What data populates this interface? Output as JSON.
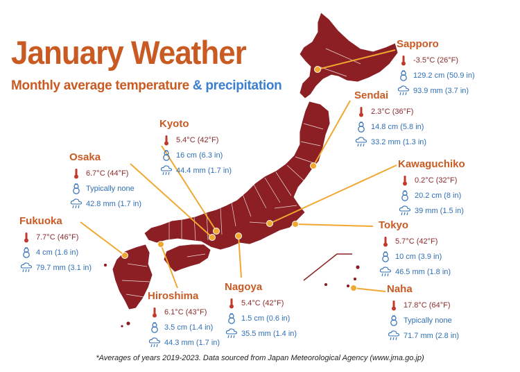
{
  "title": "January Weather",
  "subtitle": {
    "part1": "Monthly average temperature",
    "part2": "& precipitation"
  },
  "footnote": "*Averages of years 2019-2023. Data sourced from Japan Meteorological Agency (www.jma.go.jp)",
  "colors": {
    "land": "#8b1f24",
    "accent": "#c95a22",
    "blue": "#3a7fd1",
    "leader": "#f0a830"
  },
  "icons": {
    "temperature": "thermometer-icon",
    "snow": "snowman-icon",
    "precipitation": "rain-cloud-icon"
  },
  "cities": {
    "sapporo": {
      "name": "Sapporo",
      "temp": "-3.5°C (26°F)",
      "snow": "129.2 cm (50.9 in)",
      "precip": "93.9 mm (3.7 in)"
    },
    "sendai": {
      "name": "Sendai",
      "temp": "2.3°C (36°F)",
      "snow": "14.8 cm (5.8 in)",
      "precip": "33.2 mm (1.3 in)"
    },
    "kyoto": {
      "name": "Kyoto",
      "temp": "5.4°C (42°F)",
      "snow": "16 cm (6.3 in)",
      "precip": "44.4 mm (1.7 in)"
    },
    "osaka": {
      "name": "Osaka",
      "temp": "6.7°C (44°F)",
      "snow": "Typically none",
      "precip": "42.8 mm (1.7 in)"
    },
    "kawaguchiko": {
      "name": "Kawaguchiko",
      "temp": "0.2°C (32°F)",
      "snow": "20.2 cm (8 in)",
      "precip": "39 mm (1.5 in)"
    },
    "fukuoka": {
      "name": "Fukuoka",
      "temp": "7.7°C (46°F)",
      "snow": "4 cm (1.6 in)",
      "precip": "79.7 mm (3.1 in)"
    },
    "tokyo": {
      "name": "Tokyo",
      "temp": "5.7°C (42°F)",
      "snow": "10 cm (3.9 in)",
      "precip": "46.5 mm (1.8 in)"
    },
    "hiroshima": {
      "name": "Hiroshima",
      "temp": "6.1°C (43°F)",
      "snow": "3.5 cm (1.4 in)",
      "precip": "44.3 mm (1.7 in)"
    },
    "nagoya": {
      "name": "Nagoya",
      "temp": "5.4°C (42°F)",
      "snow": "1.5 cm (0.6 in)",
      "precip": "35.5 mm (1.4 in)"
    },
    "naha": {
      "name": "Naha",
      "temp": "17.8°C (64°F)",
      "snow": "Typically none",
      "precip": "71.7 mm (2.8 in)"
    }
  }
}
